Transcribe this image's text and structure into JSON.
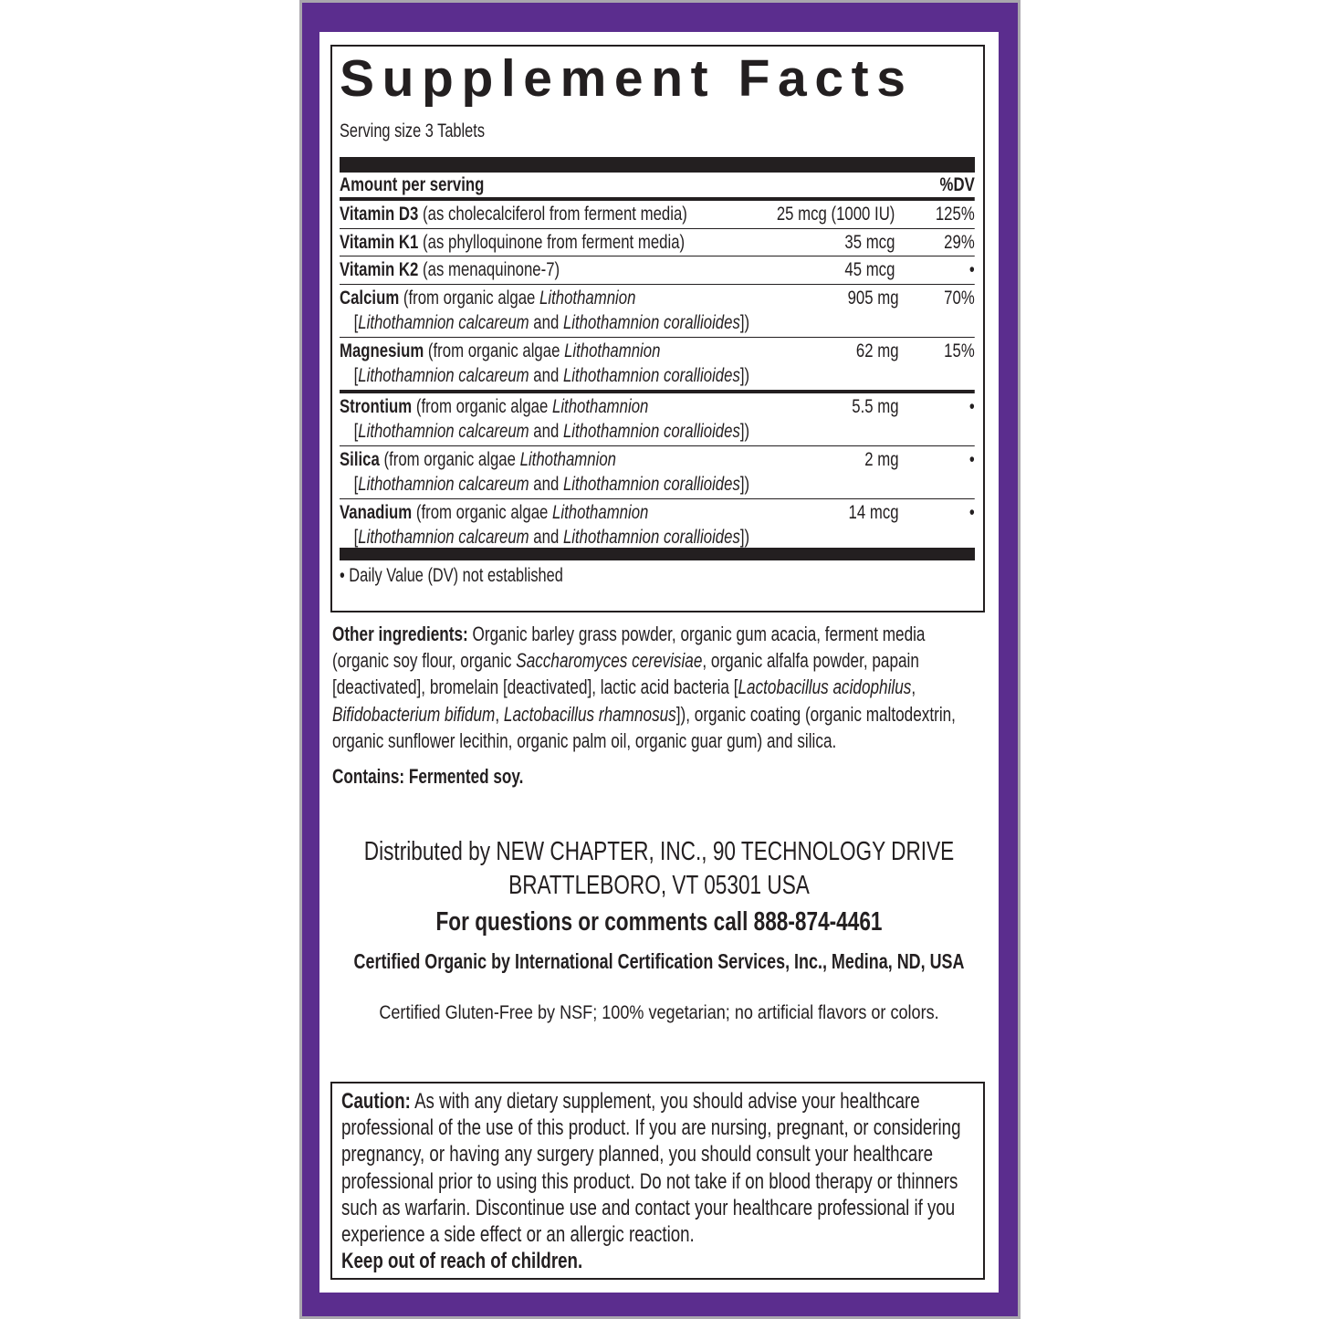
{
  "colors": {
    "frame": "#5b2d8e",
    "text": "#231f20"
  },
  "title": "Supplement Facts",
  "serving_size": "Serving size 3 Tablets",
  "table": {
    "header": {
      "amount_label": "Amount per serving",
      "dv_label": "%DV"
    },
    "rows": [
      {
        "name": "Vitamin D3",
        "lines": [
          [
            {
              "t": " (as cholecalciferol from ferment media)"
            }
          ]
        ],
        "amount": "25 mcg (1000 IU)",
        "dv": "125%"
      },
      {
        "name": "Vitamin K1",
        "lines": [
          [
            {
              "t": " (as phylloquinone from ferment media)"
            }
          ]
        ],
        "amount": "35 mcg",
        "dv": "29%"
      },
      {
        "name": "Vitamin K2",
        "lines": [
          [
            {
              "t": " (as menaquinone-7)"
            }
          ]
        ],
        "amount": "45 mcg",
        "dv": "•"
      },
      {
        "name": "Calcium",
        "lines": [
          [
            {
              "t": " (from organic algae "
            },
            {
              "t": "Lithothamnion",
              "i": true
            }
          ],
          [
            {
              "t": "["
            },
            {
              "t": "Lithothamnion calcareum",
              "i": true
            },
            {
              "t": " and "
            },
            {
              "t": "Lithothamnion corallioides",
              "i": true
            },
            {
              "t": "])"
            }
          ]
        ],
        "amount": "905 mg",
        "dv": "70%"
      },
      {
        "name": "Magnesium",
        "lines": [
          [
            {
              "t": " (from organic algae "
            },
            {
              "t": "Lithothamnion",
              "i": true
            }
          ],
          [
            {
              "t": "["
            },
            {
              "t": "Lithothamnion calcareum",
              "i": true
            },
            {
              "t": " and "
            },
            {
              "t": "Lithothamnion corallioides",
              "i": true
            },
            {
              "t": "])"
            }
          ]
        ],
        "amount": "62 mg",
        "dv": "15%",
        "thick": true
      },
      {
        "name": "Strontium",
        "lines": [
          [
            {
              "t": " (from organic algae "
            },
            {
              "t": "Lithothamnion",
              "i": true
            }
          ],
          [
            {
              "t": "["
            },
            {
              "t": "Lithothamnion calcareum",
              "i": true
            },
            {
              "t": " and "
            },
            {
              "t": "Lithothamnion corallioides",
              "i": true
            },
            {
              "t": "])"
            }
          ]
        ],
        "amount": "5.5 mg",
        "dv": "•"
      },
      {
        "name": "Silica",
        "lines": [
          [
            {
              "t": " (from organic algae "
            },
            {
              "t": "Lithothamnion",
              "i": true
            }
          ],
          [
            {
              "t": "["
            },
            {
              "t": "Lithothamnion calcareum",
              "i": true
            },
            {
              "t": " and "
            },
            {
              "t": "Lithothamnion corallioides",
              "i": true
            },
            {
              "t": "])"
            }
          ]
        ],
        "amount": "2 mg",
        "dv": "•"
      },
      {
        "name": "Vanadium",
        "lines": [
          [
            {
              "t": " (from organic algae "
            },
            {
              "t": "Lithothamnion",
              "i": true
            }
          ],
          [
            {
              "t": "["
            },
            {
              "t": "Lithothamnion calcareum",
              "i": true
            },
            {
              "t": " and "
            },
            {
              "t": "Lithothamnion corallioides",
              "i": true
            },
            {
              "t": "])"
            }
          ]
        ],
        "amount": "14 mcg",
        "dv": "•"
      }
    ],
    "footnote": "•  Daily Value (DV) not established"
  },
  "other_ingredients": {
    "label": "Other ingredients:",
    "segments": [
      {
        "t": " Organic barley grass powder, organic gum acacia, ferment media (organic soy flour, organic "
      },
      {
        "t": "Saccharomyces cerevisiae",
        "i": true
      },
      {
        "t": ", organic alfalfa powder, papain [deactivated], bromelain [deactivated], lactic acid bacteria ["
      },
      {
        "t": "Lactobacillus acidophilus",
        "i": true
      },
      {
        "t": ", "
      },
      {
        "t": "Bifidobacterium bifidum",
        "i": true
      },
      {
        "t": ", "
      },
      {
        "t": "Lactobacillus rhamnosus",
        "i": true
      },
      {
        "t": "]), organic coating (organic maltodextrin, organic sunflower lecithin, organic palm oil, organic guar gum) and silica."
      }
    ]
  },
  "contains": "Contains: Fermented soy.",
  "distributor": {
    "line1": "Distributed by NEW CHAPTER, INC., 90 TECHNOLOGY DRIVE",
    "line2": "BRATTLEBORO, VT 05301 USA",
    "phone": "For questions or comments call 888-874-4461",
    "certified_organic": "Certified Organic by International Certification Services, Inc., Medina, ND, USA",
    "gluten_free": "Certified Gluten-Free by NSF; 100% vegetarian; no artificial flavors or colors."
  },
  "caution": {
    "label": "Caution:",
    "text": " As with any dietary supplement, you should advise your healthcare professional of the use of this product. If you are nursing, pregnant, or considering pregnancy, or having any surgery planned, you should consult your healthcare professional prior to using this product. Do not take if on blood therapy or thinners such as warfarin. Discontinue use and contact your healthcare professional if you experience a side effect or an allergic reaction.",
    "warning": "Keep out of reach of children."
  }
}
